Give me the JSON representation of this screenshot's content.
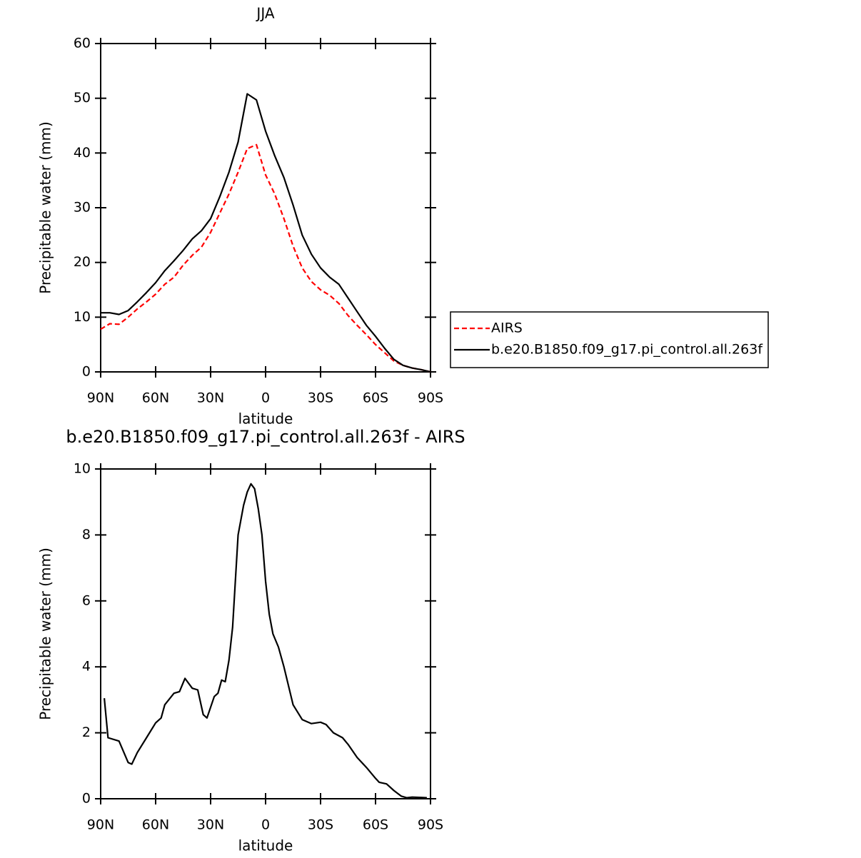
{
  "chart_data": [
    {
      "type": "line",
      "title": "JJA",
      "xlabel": "latitude",
      "ylabel": "Precipitable water (mm)",
      "x": [
        90,
        85,
        80,
        75,
        70,
        65,
        60,
        55,
        50,
        45,
        40,
        35,
        30,
        25,
        20,
        15,
        10,
        5,
        0,
        -5,
        -10,
        -15,
        -20,
        -25,
        -30,
        -35,
        -40,
        -45,
        -50,
        -55,
        -60,
        -65,
        -70,
        -75,
        -80,
        -85,
        -90
      ],
      "series": [
        {
          "name": "AIRS",
          "color": "#ff0000",
          "dashed": true,
          "values": [
            7.8,
            8.8,
            8.7,
            10.0,
            11.5,
            12.8,
            14.2,
            16.0,
            17.3,
            19.5,
            21.3,
            22.8,
            25.5,
            29.0,
            32.5,
            36.5,
            40.8,
            41.5,
            36.0,
            32.5,
            28.0,
            23.0,
            19.0,
            16.5,
            15.0,
            14.0,
            12.5,
            10.3,
            8.5,
            6.8,
            5.0,
            3.5,
            2.0,
            1.2,
            0.7,
            0.4,
            0.0
          ]
        },
        {
          "name": "b.e20.B1850.f09_g17.pi_control.all.263f",
          "color": "#000000",
          "dashed": false,
          "values": [
            10.8,
            10.8,
            10.5,
            11.2,
            12.8,
            14.5,
            16.3,
            18.5,
            20.3,
            22.2,
            24.3,
            25.8,
            28.0,
            32.0,
            36.5,
            42.0,
            50.8,
            49.7,
            44.0,
            39.5,
            35.5,
            30.5,
            25.0,
            21.5,
            19.0,
            17.3,
            16.0,
            13.5,
            11.0,
            8.5,
            6.5,
            4.3,
            2.3,
            1.2,
            0.7,
            0.4,
            0.0
          ]
        }
      ],
      "xlim": [
        90,
        -90
      ],
      "xticks": [
        {
          "value": 90,
          "label": "90N"
        },
        {
          "value": 60,
          "label": "60N"
        },
        {
          "value": 30,
          "label": "30N"
        },
        0,
        {
          "value": -30,
          "label": "30S"
        },
        {
          "value": -60,
          "label": "60S"
        },
        {
          "value": -90,
          "label": "90S"
        }
      ],
      "ylim": [
        0,
        60
      ],
      "yticks": [
        0,
        10,
        20,
        30,
        40,
        50,
        60
      ],
      "legend": "right"
    },
    {
      "type": "line",
      "title": "b.e20.B1850.f09_g17.pi_control.all.263f - AIRS",
      "xlabel": "latitude",
      "ylabel": "Precipitable water (mm)",
      "x": [
        88,
        86,
        80,
        75,
        73,
        70,
        65,
        60,
        57,
        55,
        50,
        47,
        44,
        40,
        37,
        34,
        32,
        28,
        26,
        24,
        22,
        20,
        18,
        15,
        12,
        10,
        8,
        6,
        4,
        2,
        0,
        -2,
        -4,
        -7,
        -10,
        -15,
        -20,
        -25,
        -30,
        -33,
        -37,
        -42,
        -45,
        -50,
        -55,
        -60,
        -62,
        -66,
        -70,
        -74,
        -77,
        -80,
        -85,
        -88
      ],
      "values": [
        3.05,
        1.85,
        1.75,
        1.1,
        1.05,
        1.4,
        1.85,
        2.3,
        2.45,
        2.85,
        3.2,
        3.25,
        3.65,
        3.35,
        3.3,
        2.55,
        2.45,
        3.1,
        3.2,
        3.6,
        3.55,
        4.2,
        5.2,
        8.0,
        8.9,
        9.3,
        9.55,
        9.4,
        8.8,
        8.0,
        6.6,
        5.6,
        5.0,
        4.6,
        4.0,
        2.85,
        2.4,
        2.28,
        2.32,
        2.25,
        2.0,
        1.85,
        1.65,
        1.25,
        0.95,
        0.62,
        0.5,
        0.45,
        0.25,
        0.08,
        0.03,
        0.05,
        0.04,
        0.03
      ],
      "color": "#000000",
      "xlim": [
        90,
        -90
      ],
      "xticks": [
        {
          "value": 90,
          "label": "90N"
        },
        {
          "value": 60,
          "label": "60N"
        },
        {
          "value": 30,
          "label": "30N"
        },
        0,
        {
          "value": -30,
          "label": "30S"
        },
        {
          "value": -60,
          "label": "60S"
        },
        {
          "value": -90,
          "label": "90S"
        }
      ],
      "ylim": [
        0,
        10
      ],
      "yticks": [
        0,
        2,
        4,
        6,
        8,
        10
      ]
    }
  ]
}
